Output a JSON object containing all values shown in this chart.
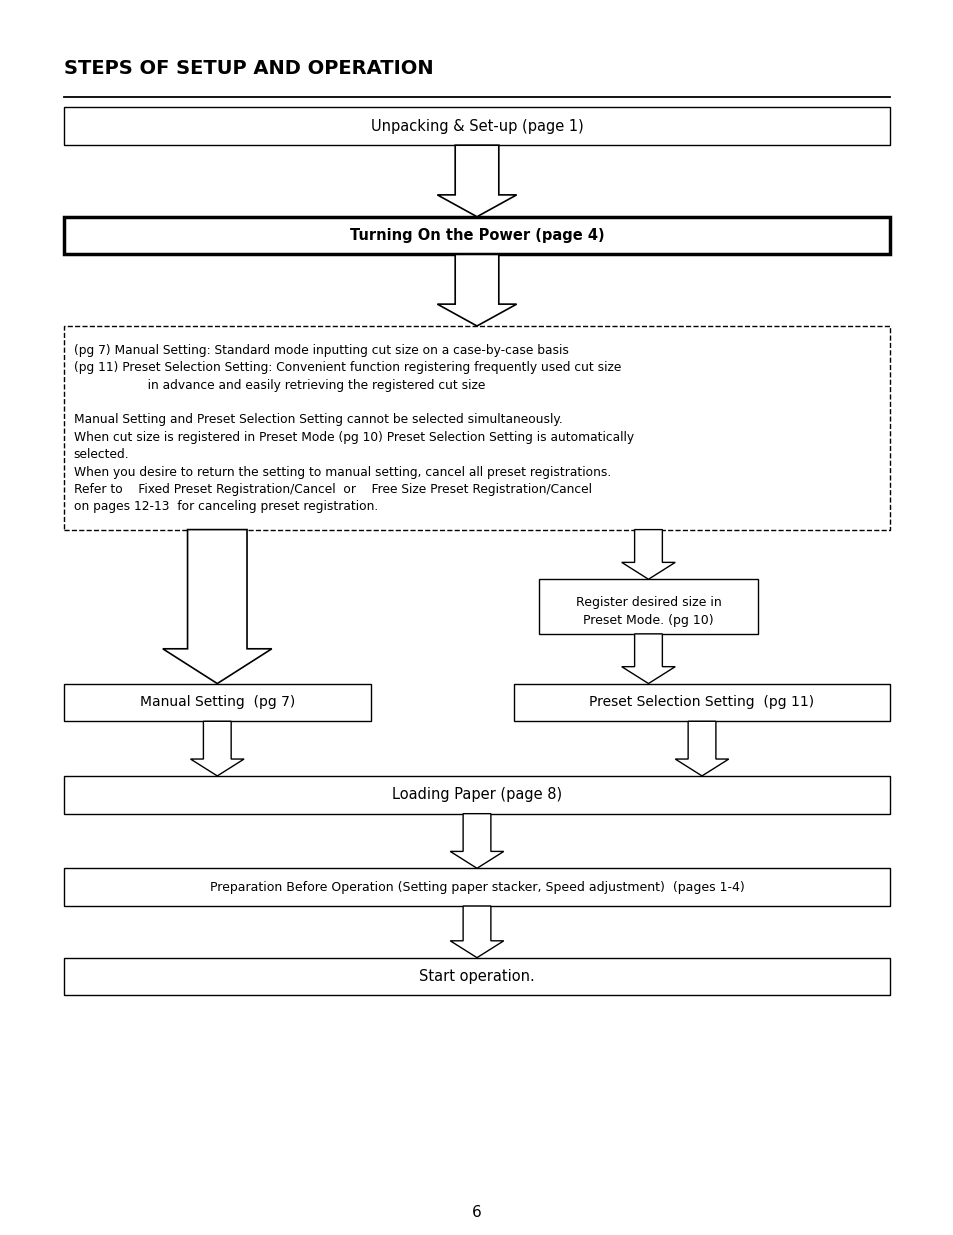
{
  "title": "STEPS OF SETUP AND OPERATION",
  "background_color": "#ffffff",
  "page_number": "6",
  "info_lines": [
    {
      "text": "(pg 7) Manual Setting: Standard mode inputting cut size on a case-by-case basis",
      "bold": false,
      "indent": false
    },
    {
      "text": "(pg 11) Preset Selection Setting: Convenient function registering frequently used cut size",
      "bold": false,
      "indent": false
    },
    {
      "text": "                   in advance and easily retrieving the registered cut size",
      "bold": false,
      "indent": false
    },
    {
      "text": "",
      "bold": false,
      "indent": false
    },
    {
      "text": "Manual Setting and Preset Selection Setting cannot be selected simultaneously.",
      "bold": false,
      "indent": false
    },
    {
      "text": "When cut size is registered in Preset Mode (pg 10) Preset Selection Setting is automatically",
      "bold": false,
      "indent": false
    },
    {
      "text": "selected.",
      "bold": false,
      "indent": false
    },
    {
      "text": "When you desire to return the setting to manual setting, cancel all preset registrations.",
      "bold": false,
      "indent": false
    },
    {
      "text": "Refer to    Fixed Preset Registration/Cancel  or    Free Size Preset Registration/Cancel",
      "bold": false,
      "indent": false
    },
    {
      "text": "on pages 12-13  for canceling preset registration.",
      "bold": false,
      "indent": false
    }
  ]
}
